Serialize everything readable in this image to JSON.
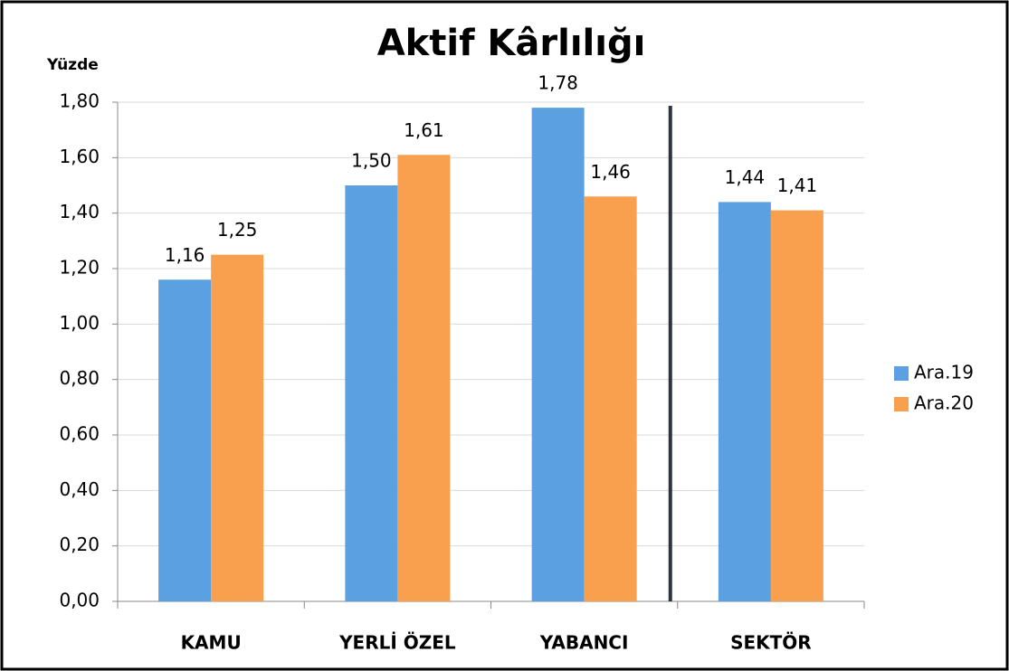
{
  "chart_data": {
    "type": "bar",
    "title": "Aktif Kârlılığı",
    "y_label": "Yüzde",
    "categories": [
      "KAMU",
      "YERLİ ÖZEL",
      "YABANCI",
      "SEKTÖR"
    ],
    "series": [
      {
        "name": "Ara.19",
        "color": "#5ba0e0",
        "values": [
          1.16,
          1.5,
          1.78,
          1.44
        ],
        "value_labels": [
          "1,16",
          "1,50",
          "1,78",
          "1,44"
        ]
      },
      {
        "name": "Ara.20",
        "color": "#f9a04e",
        "values": [
          1.25,
          1.61,
          1.46,
          1.41
        ],
        "value_labels": [
          "1,25",
          "1,61",
          "1,46",
          "1,41"
        ]
      }
    ],
    "ylim": [
      0,
      1.8
    ],
    "yticks": [
      {
        "value": 0,
        "label": "0,00"
      },
      {
        "value": 0.2,
        "label": "0,20"
      },
      {
        "value": 0.4,
        "label": "0,40"
      },
      {
        "value": 0.6,
        "label": "0,60"
      },
      {
        "value": 0.8,
        "label": "0,80"
      },
      {
        "value": 1.0,
        "label": "1,00"
      },
      {
        "value": 1.2,
        "label": "1,20"
      },
      {
        "value": 1.4,
        "label": "1,40"
      },
      {
        "value": 1.6,
        "label": "1,60"
      },
      {
        "value": 1.8,
        "label": "1,80"
      }
    ],
    "grid": true,
    "legend": "right"
  }
}
